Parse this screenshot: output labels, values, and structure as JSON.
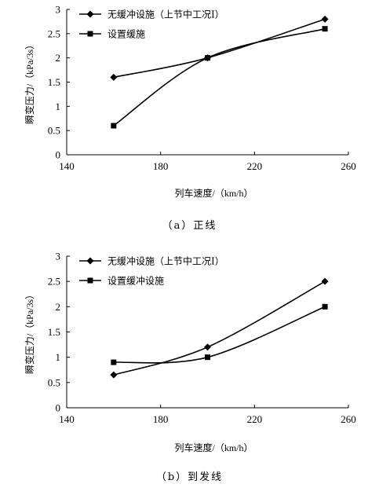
{
  "chart_data": [
    {
      "type": "line",
      "caption": "（a）正线",
      "xlabel": "列车速度/（km/h）",
      "ylabel": "瞬变压力/（kPa/3s）",
      "xlim": [
        140,
        260
      ],
      "ylim": [
        0,
        3
      ],
      "x_ticks": [
        "140",
        "180",
        "220",
        "260"
      ],
      "y_ticks": [
        "0",
        "0.5",
        "1",
        "1.5",
        "2",
        "2.5",
        "3"
      ],
      "grid": false,
      "legend_position": "top-left",
      "x": [
        160,
        200,
        250
      ],
      "series": [
        {
          "name": "无缓冲设施（上节中工况Ⅰ）",
          "marker": "diamond",
          "values": [
            1.6,
            2.0,
            2.8
          ]
        },
        {
          "name": "设置缓施",
          "marker": "square",
          "values": [
            0.6,
            2.0,
            2.6
          ]
        }
      ]
    },
    {
      "type": "line",
      "caption": "（b）到发线",
      "xlabel": "列车速度/（km/h）",
      "ylabel": "瞬变压力/（kPa/3s）",
      "xlim": [
        140,
        260
      ],
      "ylim": [
        0,
        3
      ],
      "x_ticks": [
        "140",
        "180",
        "220",
        "260"
      ],
      "y_ticks": [
        "0",
        "0.5",
        "1",
        "1.5",
        "2",
        "2.5",
        "3"
      ],
      "grid": false,
      "legend_position": "top-left",
      "x": [
        160,
        200,
        250
      ],
      "series": [
        {
          "name": "无缓冲设施（上节中工况Ⅰ）",
          "marker": "diamond",
          "values": [
            0.65,
            1.2,
            2.5
          ]
        },
        {
          "name": "设置缓冲设施",
          "marker": "square",
          "values": [
            0.9,
            1.0,
            2.0
          ]
        }
      ]
    }
  ]
}
